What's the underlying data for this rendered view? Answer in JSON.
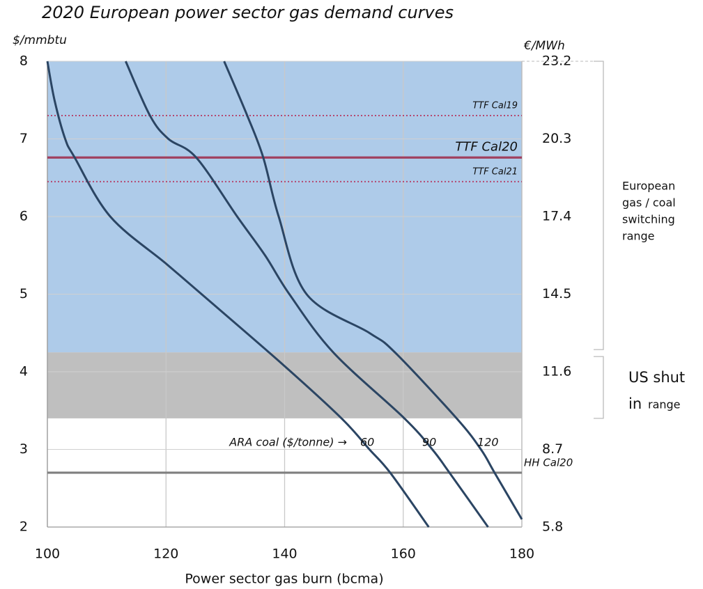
{
  "chart_data": {
    "type": "line",
    "title": "2020 European power sector gas demand curves",
    "x_label": "Power sector gas burn (bcma)",
    "y_label": "$/mmbtu",
    "y2_label": "€/MWh",
    "xlim": [
      100,
      180
    ],
    "xticks": [
      100,
      120,
      140,
      160,
      180
    ],
    "ylim": [
      2,
      8
    ],
    "yticks": [
      2,
      3,
      4,
      5,
      6,
      7,
      8
    ],
    "y2lim": [
      5.8,
      23.2
    ],
    "y2ticks": [
      5.8,
      8.7,
      11.6,
      14.5,
      17.4,
      20.3,
      23.2
    ],
    "grid": true,
    "series_annotation": "ARA coal ($/tonne) →",
    "series": [
      {
        "name": "60",
        "color": "#2b4563",
        "x": [
          100,
          101.2,
          103,
          104.6,
          110.6,
          119.9,
          126,
          139.6,
          149.6,
          154.3,
          157.8,
          164.3
        ],
        "values": [
          8,
          7.5,
          7,
          6.76,
          6,
          5.4,
          5,
          4.1,
          3.4,
          3,
          2.7,
          2
        ]
      },
      {
        "name": "90",
        "color": "#2b4563",
        "x": [
          113.2,
          117.3,
          120.4,
          125.1,
          132,
          136.7,
          140.8,
          148.2,
          160.2,
          164.9,
          167.8,
          174.3
        ],
        "values": [
          8,
          7.3,
          7,
          6.76,
          6,
          5.5,
          5,
          4.25,
          3.4,
          3,
          2.7,
          2
        ]
      },
      {
        "name": "120",
        "color": "#2b4563",
        "x": [
          129.8,
          133.7,
          136.4,
          139,
          143.7,
          154.3,
          158.6,
          169,
          173.1,
          175.4,
          180
        ],
        "values": [
          8,
          7.3,
          6.76,
          6,
          5,
          4.5,
          4.25,
          3.4,
          3,
          2.7,
          2.1
        ]
      }
    ],
    "bands": [
      {
        "from": 4.25,
        "to": 8,
        "color": "#aecbe9",
        "label_lines": [
          "European",
          "gas / coal",
          "switching",
          "range"
        ]
      },
      {
        "from": 3.4,
        "to": 4.25,
        "color": "#bfbfbf",
        "label_lines": [
          "US shut",
          "in",
          "range"
        ]
      }
    ],
    "ref_lines": [
      {
        "label": "TTF Cal19",
        "value": 7.3,
        "color": "#b5476f",
        "style": "dotted"
      },
      {
        "label": "TTF Cal20",
        "value": 6.76,
        "color": "#a0405f",
        "style": "solid"
      },
      {
        "label": "TTF Cal21",
        "value": 6.45,
        "color": "#b5476f",
        "style": "dotted"
      },
      {
        "label": "HH Cal20",
        "value": 2.7,
        "color": "#7f7f7f",
        "style": "solid"
      }
    ]
  }
}
